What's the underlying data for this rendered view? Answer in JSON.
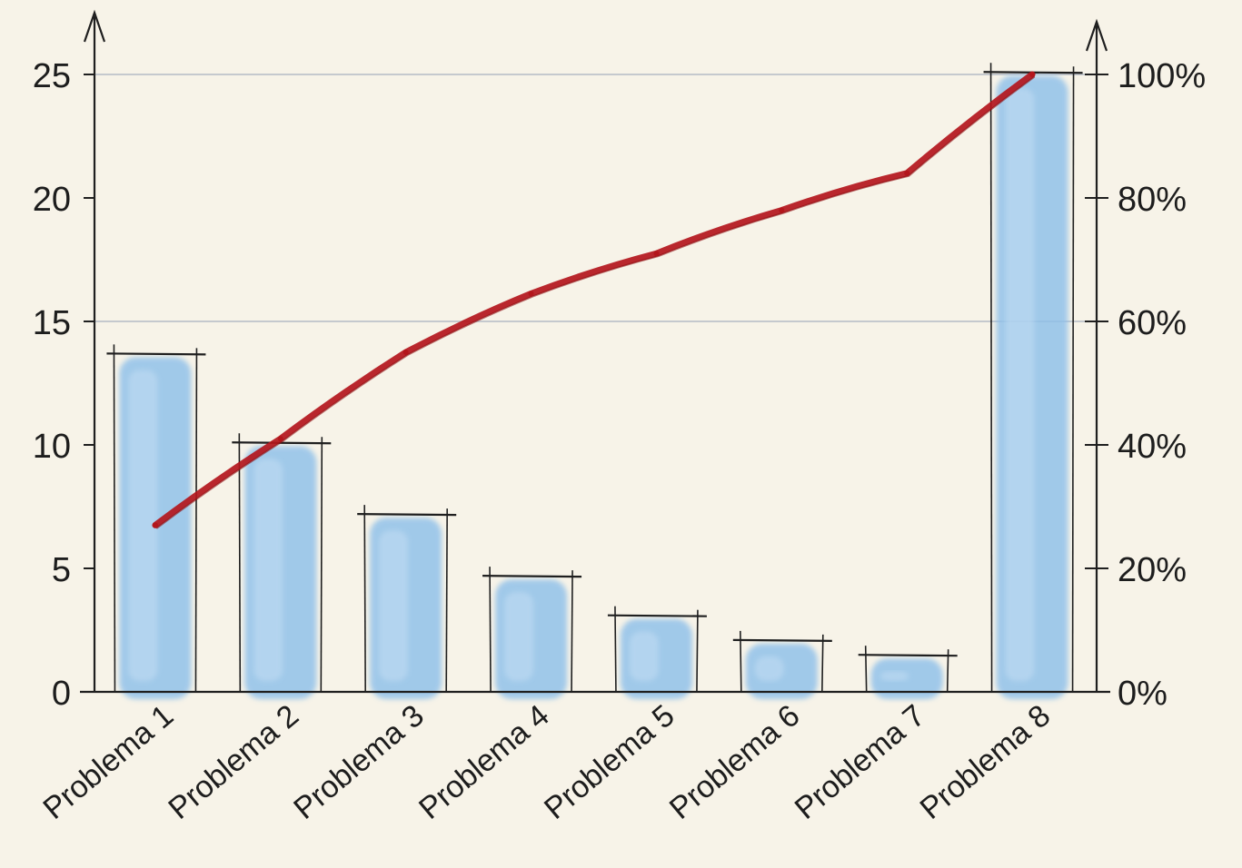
{
  "chart_data": {
    "type": "bar",
    "categories": [
      "Problema 1",
      "Problema 2",
      "Problema 3",
      "Problema 4",
      "Problema 5",
      "Problema 6",
      "Problema 7",
      "Problema 8"
    ],
    "series": [
      {
        "type": "bar",
        "values": [
          13.7,
          10.1,
          7.2,
          4.7,
          3.1,
          2.1,
          1.5,
          25.1
        ]
      },
      {
        "type": "line",
        "axis": "right",
        "values": [
          27,
          41,
          55,
          64.5,
          71,
          78,
          84,
          100
        ]
      }
    ],
    "left_axis": {
      "ticks": [
        0,
        5,
        10,
        15,
        20,
        25
      ],
      "ylim": [
        0,
        25
      ]
    },
    "right_axis": {
      "ticks": [
        "0%",
        "20%",
        "40%",
        "60%",
        "80%",
        "100%"
      ],
      "ylim": [
        0,
        100
      ]
    },
    "grid": {
      "horizontal": [
        15,
        25
      ]
    },
    "title": "",
    "xlabel": "",
    "ylabel": "",
    "colors": {
      "bar": "#8ec0ea",
      "bar_outline": "#1f1f1f",
      "line": "#b3161c",
      "axis": "#1f1f1f",
      "grid": "#b9bfc8",
      "background": "#f7f3e8"
    }
  }
}
